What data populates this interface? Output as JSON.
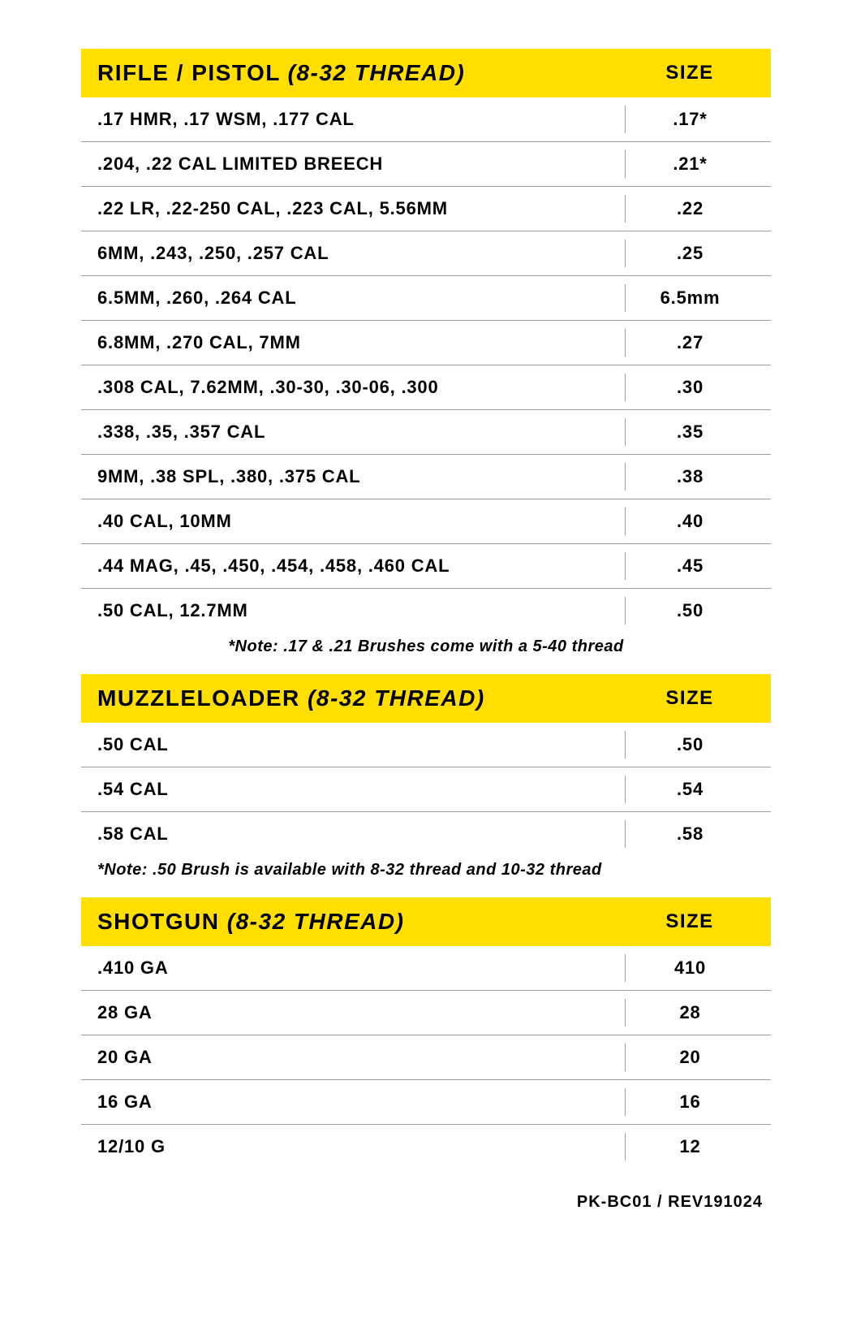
{
  "colors": {
    "header_bg": "#ffde00",
    "header_text": "#000000",
    "row_text": "#000000",
    "divider": "#9e9e9e",
    "background": "#ffffff"
  },
  "typography": {
    "header_title_fontsize": 28,
    "header_size_fontsize": 24,
    "row_fontsize": 22,
    "note_fontsize": 20,
    "footer_fontsize": 20
  },
  "sections": [
    {
      "title_bold": "RIFLE / PISTOL",
      "title_italic": "(8-32 THREAD)",
      "size_label": "SIZE",
      "rows": [
        {
          "cal": ".17 HMR, .17 WSM, .177 CAL",
          "size": ".17*"
        },
        {
          "cal": ".204, .22 CAL LIMITED BREECH",
          "size": ".21*"
        },
        {
          "cal": ".22 LR, .22-250 CAL, .223 CAL, 5.56MM",
          "size": ".22"
        },
        {
          "cal": "6MM, .243, .250, .257 CAL",
          "size": ".25"
        },
        {
          "cal": "6.5MM, .260, .264 CAL",
          "size": "6.5mm"
        },
        {
          "cal": "6.8MM, .270 CAL, 7MM",
          "size": ".27"
        },
        {
          "cal": ".308 CAL, 7.62MM, .30-30, .30-06, .300",
          "size": ".30"
        },
        {
          "cal": ".338, .35, .357 CAL",
          "size": ".35"
        },
        {
          "cal": "9MM, .38 SPL, .380, .375 CAL",
          "size": ".38"
        },
        {
          "cal": ".40 CAL, 10MM",
          "size": ".40"
        },
        {
          "cal": ".44 MAG, .45, .450, .454, .458, .460 CAL",
          "size": ".45"
        },
        {
          "cal": ".50 CAL, 12.7MM",
          "size": ".50"
        }
      ],
      "note": "*Note: .17 & .21 Brushes come with a 5-40 thread",
      "note_align": "center"
    },
    {
      "title_bold": "MUZZLELOADER",
      "title_italic": "(8-32 THREAD)",
      "size_label": "SIZE",
      "rows": [
        {
          "cal": ".50 CAL",
          "size": ".50"
        },
        {
          "cal": ".54 CAL",
          "size": ".54"
        },
        {
          "cal": ".58 CAL",
          "size": ".58"
        }
      ],
      "note": "*Note: .50 Brush is available with 8-32 thread and 10-32 thread",
      "note_align": "left"
    },
    {
      "title_bold": "SHOTGUN",
      "title_italic": "(8-32 THREAD)",
      "size_label": "SIZE",
      "rows": [
        {
          "cal": ".410 GA",
          "size": "410"
        },
        {
          "cal": "28 GA",
          "size": "28"
        },
        {
          "cal": "20 GA",
          "size": "20"
        },
        {
          "cal": "16 GA",
          "size": "16"
        },
        {
          "cal": "12/10 G",
          "size": "12"
        }
      ]
    }
  ],
  "footer": "PK-BC01 / REV191024"
}
